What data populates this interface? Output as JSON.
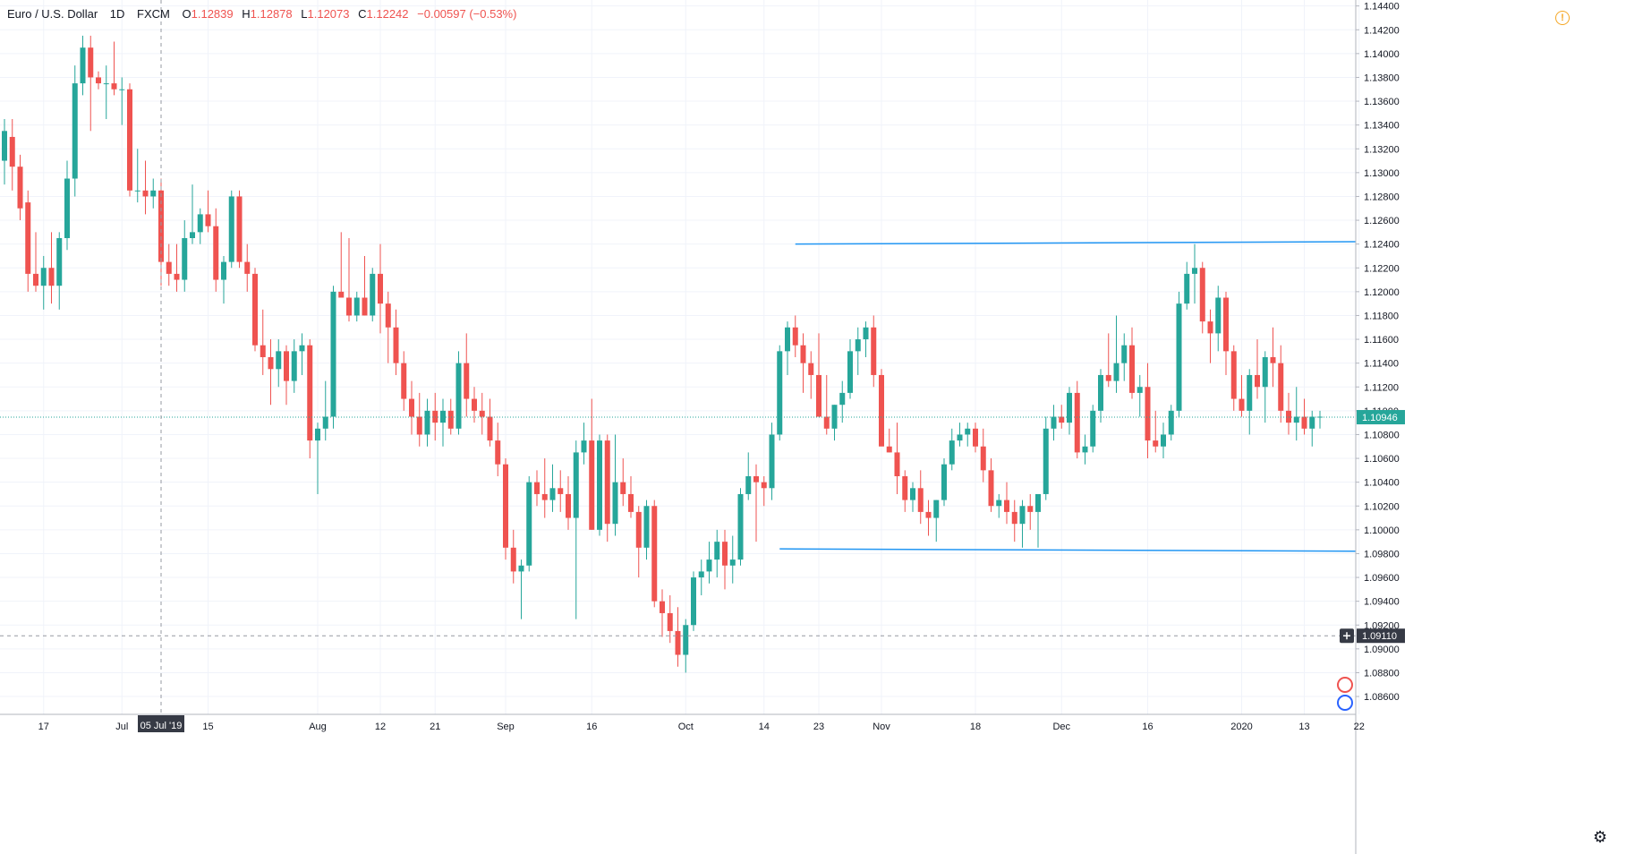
{
  "header": {
    "symbol": "Euro / U.S. Dollar",
    "interval": "1D",
    "exchange": "FXCM",
    "open_label": "O",
    "open": "1.12839",
    "high_label": "H",
    "high": "1.12878",
    "low_label": "L",
    "low": "1.12073",
    "close_label": "C",
    "close": "1.12242",
    "change": "−0.00597 (−0.53%)"
  },
  "icons": {
    "alert": "alert-icon",
    "settings": "gear-icon",
    "crosshair": "plus-icon"
  },
  "colors": {
    "up": "#26a69a",
    "down": "#ef5350",
    "line": "#2196f3",
    "axis_text": "#131722"
  },
  "chart_data": {
    "type": "candlestick",
    "ylim": [
      1.0845,
      1.1445
    ],
    "y_ticks": [
      "1.14400",
      "1.14200",
      "1.14000",
      "1.13800",
      "1.13600",
      "1.13400",
      "1.13200",
      "1.13000",
      "1.12800",
      "1.12600",
      "1.12400",
      "1.12200",
      "1.12000",
      "1.11800",
      "1.11600",
      "1.11400",
      "1.11200",
      "1.11000",
      "1.10800",
      "1.10600",
      "1.10400",
      "1.10200",
      "1.10000",
      "1.09800",
      "1.09600",
      "1.09400",
      "1.09200",
      "1.09000",
      "1.08800",
      "1.08600"
    ],
    "x_ticks": [
      {
        "label": "17",
        "index": 5
      },
      {
        "label": "Jul",
        "index": 15
      },
      {
        "label": "15",
        "index": 26
      },
      {
        "label": "Aug",
        "index": 40
      },
      {
        "label": "12",
        "index": 48
      },
      {
        "label": "21",
        "index": 55
      },
      {
        "label": "Sep",
        "index": 64
      },
      {
        "label": "16",
        "index": 75
      },
      {
        "label": "Oct",
        "index": 87
      },
      {
        "label": "14",
        "index": 97
      },
      {
        "label": "23",
        "index": 104
      },
      {
        "label": "Nov",
        "index": 112
      },
      {
        "label": "18",
        "index": 124
      },
      {
        "label": "Dec",
        "index": 135
      },
      {
        "label": "16",
        "index": 146
      },
      {
        "label": "2020",
        "index": 158
      },
      {
        "label": "13",
        "index": 166
      },
      {
        "label": "22",
        "index": 173
      }
    ],
    "crosshair": {
      "date_label": "05 Jul '19",
      "index": 20,
      "price_label": "1.09110",
      "price": 1.0911
    },
    "last_price": {
      "label": "1.10946",
      "value": 1.10946
    },
    "trendlines": [
      {
        "from_index": 101,
        "from_price": 1.124,
        "to_index": 175,
        "to_price": 1.1242
      },
      {
        "from_index": 99,
        "from_price": 1.0984,
        "to_index": 175,
        "to_price": 1.0982
      }
    ],
    "candles": [
      [
        1.131,
        1.1345,
        1.129,
        1.1335
      ],
      [
        1.133,
        1.1345,
        1.1285,
        1.1305
      ],
      [
        1.1305,
        1.1315,
        1.126,
        1.127
      ],
      [
        1.1275,
        1.1285,
        1.12,
        1.1215
      ],
      [
        1.1215,
        1.125,
        1.12,
        1.1205
      ],
      [
        1.1205,
        1.123,
        1.1185,
        1.122
      ],
      [
        1.122,
        1.125,
        1.119,
        1.1205
      ],
      [
        1.1205,
        1.125,
        1.1185,
        1.1245
      ],
      [
        1.1245,
        1.131,
        1.1235,
        1.1295
      ],
      [
        1.1295,
        1.139,
        1.128,
        1.1375
      ],
      [
        1.1375,
        1.1415,
        1.1365,
        1.1405
      ],
      [
        1.1405,
        1.1415,
        1.1335,
        1.138
      ],
      [
        1.138,
        1.1385,
        1.137,
        1.1375
      ],
      [
        1.1375,
        1.139,
        1.1345,
        1.1375
      ],
      [
        1.1375,
        1.141,
        1.1365,
        1.137
      ],
      [
        1.137,
        1.138,
        1.134,
        1.137
      ],
      [
        1.137,
        1.1375,
        1.128,
        1.1285
      ],
      [
        1.1285,
        1.132,
        1.1275,
        1.1285
      ],
      [
        1.1285,
        1.131,
        1.1265,
        1.128
      ],
      [
        1.128,
        1.1295,
        1.127,
        1.1285
      ],
      [
        1.1285,
        1.1295,
        1.1205,
        1.1225
      ],
      [
        1.1225,
        1.124,
        1.1205,
        1.1215
      ],
      [
        1.1215,
        1.124,
        1.12,
        1.121
      ],
      [
        1.121,
        1.126,
        1.12,
        1.1245
      ],
      [
        1.1245,
        1.129,
        1.124,
        1.125
      ],
      [
        1.125,
        1.127,
        1.124,
        1.1265
      ],
      [
        1.1265,
        1.1285,
        1.125,
        1.1255
      ],
      [
        1.1255,
        1.127,
        1.12,
        1.121
      ],
      [
        1.121,
        1.123,
        1.119,
        1.1225
      ],
      [
        1.1225,
        1.1285,
        1.122,
        1.128
      ],
      [
        1.128,
        1.1285,
        1.122,
        1.1225
      ],
      [
        1.1225,
        1.124,
        1.12,
        1.1215
      ],
      [
        1.1215,
        1.122,
        1.115,
        1.1155
      ],
      [
        1.1155,
        1.1185,
        1.113,
        1.1145
      ],
      [
        1.1145,
        1.116,
        1.1105,
        1.1135
      ],
      [
        1.1135,
        1.116,
        1.112,
        1.115
      ],
      [
        1.115,
        1.1155,
        1.1105,
        1.1125
      ],
      [
        1.1125,
        1.116,
        1.1115,
        1.115
      ],
      [
        1.115,
        1.1165,
        1.113,
        1.1155
      ],
      [
        1.1155,
        1.116,
        1.106,
        1.1075
      ],
      [
        1.1075,
        1.109,
        1.103,
        1.1085
      ],
      [
        1.1085,
        1.1125,
        1.1075,
        1.1095
      ],
      [
        1.1095,
        1.1205,
        1.1085,
        1.12
      ],
      [
        1.12,
        1.125,
        1.1195,
        1.1195
      ],
      [
        1.1195,
        1.1245,
        1.1175,
        1.118
      ],
      [
        1.118,
        1.12,
        1.1175,
        1.1195
      ],
      [
        1.1195,
        1.123,
        1.118,
        1.118
      ],
      [
        1.118,
        1.122,
        1.1175,
        1.1215
      ],
      [
        1.1215,
        1.124,
        1.1165,
        1.119
      ],
      [
        1.119,
        1.12,
        1.114,
        1.117
      ],
      [
        1.117,
        1.1185,
        1.113,
        1.114
      ],
      [
        1.114,
        1.115,
        1.11,
        1.111
      ],
      [
        1.111,
        1.1125,
        1.108,
        1.1095
      ],
      [
        1.1095,
        1.1115,
        1.107,
        1.108
      ],
      [
        1.108,
        1.111,
        1.107,
        1.11
      ],
      [
        1.11,
        1.1115,
        1.1075,
        1.109
      ],
      [
        1.109,
        1.111,
        1.107,
        1.11
      ],
      [
        1.11,
        1.111,
        1.108,
        1.1085
      ],
      [
        1.1085,
        1.115,
        1.108,
        1.114
      ],
      [
        1.114,
        1.1165,
        1.1095,
        1.111
      ],
      [
        1.111,
        1.112,
        1.109,
        1.11
      ],
      [
        1.11,
        1.1115,
        1.108,
        1.1095
      ],
      [
        1.1095,
        1.111,
        1.107,
        1.1075
      ],
      [
        1.1075,
        1.109,
        1.1045,
        1.1055
      ],
      [
        1.1055,
        1.106,
        1.0975,
        1.0985
      ],
      [
        1.0985,
        1.1,
        1.0955,
        1.0965
      ],
      [
        1.0965,
        1.0975,
        1.0925,
        1.097
      ],
      [
        1.097,
        1.1045,
        1.0965,
        1.104
      ],
      [
        1.104,
        1.105,
        1.102,
        1.103
      ],
      [
        1.103,
        1.106,
        1.101,
        1.1025
      ],
      [
        1.1025,
        1.1055,
        1.1015,
        1.1035
      ],
      [
        1.1035,
        1.105,
        1.1015,
        1.103
      ],
      [
        1.103,
        1.1045,
        1.1,
        1.101
      ],
      [
        1.101,
        1.1075,
        1.0925,
        1.1065
      ],
      [
        1.1065,
        1.109,
        1.1055,
        1.1075
      ],
      [
        1.1075,
        1.111,
        1.1,
        1.1
      ],
      [
        1.1,
        1.108,
        1.0995,
        1.1075
      ],
      [
        1.1075,
        1.108,
        1.099,
        1.1005
      ],
      [
        1.1005,
        1.108,
        1.0995,
        1.104
      ],
      [
        1.104,
        1.106,
        1.102,
        1.103
      ],
      [
        1.103,
        1.1045,
        1.101,
        1.1015
      ],
      [
        1.1015,
        1.102,
        1.096,
        1.0985
      ],
      [
        1.0985,
        1.1025,
        1.0975,
        1.102
      ],
      [
        1.102,
        1.1025,
        1.0935,
        1.094
      ],
      [
        1.094,
        1.095,
        1.091,
        1.093
      ],
      [
        1.093,
        1.0945,
        1.0905,
        1.0915
      ],
      [
        1.0915,
        1.0935,
        1.0885,
        1.0895
      ],
      [
        1.0895,
        1.0925,
        1.088,
        1.092
      ],
      [
        1.092,
        1.0965,
        1.0915,
        1.096
      ],
      [
        1.096,
        1.0975,
        1.0945,
        1.0965
      ],
      [
        1.0965,
        1.099,
        1.0955,
        1.0975
      ],
      [
        1.0975,
        1.1,
        1.096,
        1.099
      ],
      [
        1.099,
        1.1,
        1.095,
        1.097
      ],
      [
        1.097,
        1.0995,
        1.0955,
        1.0975
      ],
      [
        1.0975,
        1.1035,
        1.097,
        1.103
      ],
      [
        1.103,
        1.1065,
        1.1025,
        1.1045
      ],
      [
        1.1045,
        1.1055,
        1.099,
        1.104
      ],
      [
        1.104,
        1.1045,
        1.102,
        1.1035
      ],
      [
        1.1035,
        1.109,
        1.1025,
        1.108
      ],
      [
        1.108,
        1.1155,
        1.1075,
        1.115
      ],
      [
        1.115,
        1.1175,
        1.113,
        1.117
      ],
      [
        1.117,
        1.118,
        1.1145,
        1.1155
      ],
      [
        1.1155,
        1.1165,
        1.1115,
        1.114
      ],
      [
        1.114,
        1.115,
        1.111,
        1.113
      ],
      [
        1.113,
        1.1165,
        1.11,
        1.1095
      ],
      [
        1.1095,
        1.113,
        1.108,
        1.1085
      ],
      [
        1.1085,
        1.1105,
        1.1075,
        1.1105
      ],
      [
        1.1105,
        1.1125,
        1.109,
        1.1115
      ],
      [
        1.1115,
        1.116,
        1.111,
        1.115
      ],
      [
        1.115,
        1.117,
        1.113,
        1.116
      ],
      [
        1.116,
        1.1175,
        1.1145,
        1.117
      ],
      [
        1.117,
        1.118,
        1.112,
        1.113
      ],
      [
        1.113,
        1.1135,
        1.1075,
        1.107
      ],
      [
        1.107,
        1.1085,
        1.1065,
        1.1065
      ],
      [
        1.1065,
        1.109,
        1.103,
        1.1045
      ],
      [
        1.1045,
        1.105,
        1.1015,
        1.1025
      ],
      [
        1.1025,
        1.104,
        1.1015,
        1.1035
      ],
      [
        1.1035,
        1.105,
        1.1005,
        1.1015
      ],
      [
        1.1015,
        1.1025,
        1.0995,
        1.101
      ],
      [
        1.101,
        1.1025,
        1.099,
        1.1025
      ],
      [
        1.1025,
        1.106,
        1.102,
        1.1055
      ],
      [
        1.1055,
        1.1085,
        1.105,
        1.1075
      ],
      [
        1.1075,
        1.109,
        1.107,
        1.108
      ],
      [
        1.108,
        1.109,
        1.107,
        1.1085
      ],
      [
        1.1085,
        1.109,
        1.1065,
        1.107
      ],
      [
        1.107,
        1.1085,
        1.104,
        1.105
      ],
      [
        1.105,
        1.106,
        1.1015,
        1.102
      ],
      [
        1.102,
        1.103,
        1.101,
        1.1025
      ],
      [
        1.1025,
        1.104,
        1.1005,
        1.1015
      ],
      [
        1.1015,
        1.1025,
        1.099,
        1.1005
      ],
      [
        1.1005,
        1.1025,
        1.0985,
        1.102
      ],
      [
        1.102,
        1.103,
        1.1,
        1.1015
      ],
      [
        1.1015,
        1.103,
        1.0985,
        1.103
      ],
      [
        1.103,
        1.1095,
        1.1025,
        1.1085
      ],
      [
        1.1085,
        1.1105,
        1.1075,
        1.1095
      ],
      [
        1.1095,
        1.1105,
        1.1085,
        1.109
      ],
      [
        1.109,
        1.112,
        1.108,
        1.1115
      ],
      [
        1.1115,
        1.1125,
        1.106,
        1.1065
      ],
      [
        1.1065,
        1.108,
        1.1055,
        1.107
      ],
      [
        1.107,
        1.1105,
        1.1065,
        1.11
      ],
      [
        1.11,
        1.1135,
        1.109,
        1.113
      ],
      [
        1.113,
        1.1165,
        1.112,
        1.1125
      ],
      [
        1.1125,
        1.118,
        1.1115,
        1.114
      ],
      [
        1.114,
        1.1165,
        1.1125,
        1.1155
      ],
      [
        1.1155,
        1.117,
        1.111,
        1.1115
      ],
      [
        1.1115,
        1.113,
        1.1095,
        1.112
      ],
      [
        1.112,
        1.114,
        1.106,
        1.1075
      ],
      [
        1.1075,
        1.11,
        1.1065,
        1.107
      ],
      [
        1.107,
        1.109,
        1.106,
        1.108
      ],
      [
        1.108,
        1.1105,
        1.1075,
        1.11
      ],
      [
        1.11,
        1.12,
        1.1095,
        1.119
      ],
      [
        1.119,
        1.1225,
        1.1185,
        1.1215
      ],
      [
        1.1215,
        1.124,
        1.119,
        1.122
      ],
      [
        1.122,
        1.1225,
        1.1165,
        1.1175
      ],
      [
        1.1175,
        1.1185,
        1.114,
        1.1165
      ],
      [
        1.1165,
        1.1205,
        1.115,
        1.1195
      ],
      [
        1.1195,
        1.12,
        1.113,
        1.115
      ],
      [
        1.115,
        1.1155,
        1.11,
        1.111
      ],
      [
        1.111,
        1.113,
        1.1095,
        1.11
      ],
      [
        1.11,
        1.1135,
        1.108,
        1.113
      ],
      [
        1.113,
        1.116,
        1.111,
        1.112
      ],
      [
        1.112,
        1.115,
        1.109,
        1.1145
      ],
      [
        1.1145,
        1.117,
        1.112,
        1.114
      ],
      [
        1.114,
        1.1155,
        1.109,
        1.11
      ],
      [
        1.11,
        1.1115,
        1.108,
        1.109
      ],
      [
        1.109,
        1.112,
        1.1075,
        1.1095
      ],
      [
        1.1095,
        1.111,
        1.108,
        1.1085
      ],
      [
        1.1085,
        1.11,
        1.107,
        1.1095
      ],
      [
        1.1095,
        1.11,
        1.1085,
        1.1095
      ]
    ]
  }
}
